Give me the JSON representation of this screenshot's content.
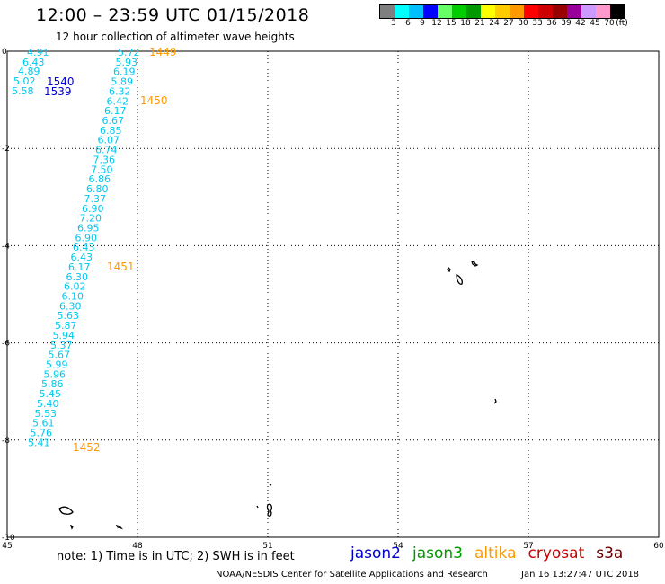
{
  "header": {
    "title": "12:00 – 23:59 UTC 01/15/2018",
    "subtitle": "12 hour collection of altimeter wave heights"
  },
  "scale": {
    "colors": [
      "#7f7f7f",
      "#00ffff",
      "#00bfff",
      "#0000ff",
      "#66ff66",
      "#00cc00",
      "#009900",
      "#ffff00",
      "#ffcc00",
      "#ff9900",
      "#ff0000",
      "#cc0000",
      "#990000",
      "#990099",
      "#cc99ff",
      "#ff99cc",
      "#000000"
    ],
    "labels": [
      "3",
      "6",
      "9",
      "12",
      "15",
      "18",
      "21",
      "24",
      "27",
      "30",
      "33",
      "36",
      "39",
      "42",
      "45",
      "70",
      "(ft)"
    ]
  },
  "map": {
    "lon_ticks": [
      "45",
      "48",
      "51",
      "54",
      "57",
      "60"
    ],
    "lat_ticks": [
      "0",
      "-2",
      "-4",
      "-6",
      "-8",
      "-10"
    ],
    "lon_range": [
      45,
      60
    ],
    "lat_range": [
      -10,
      0
    ],
    "grid": true,
    "colors": {
      "cyan": "#00c8f0",
      "jason2": "#0000cc",
      "altika": "#ff9900"
    }
  },
  "track_left": {
    "values": [
      "4.91",
      "6.43",
      "4.89",
      "5.02",
      "5.58"
    ]
  },
  "track_jason2": {
    "times": [
      "1540",
      "1539"
    ]
  },
  "track_main": {
    "values": [
      "5.72",
      "5.93",
      "6.19",
      "5.89",
      "6.32",
      "6.42",
      "6.17",
      "6.67",
      "6.85",
      "6.07",
      "6.74",
      "7.36",
      "7.50",
      "6.86",
      "6.80",
      "7.37",
      "6.90",
      "7.20",
      "6.95",
      "6.90",
      "6.43",
      "6.43",
      "6.17",
      "6.30",
      "6.02",
      "6.10",
      "6.30",
      "5.63",
      "5.87",
      "5.94",
      "5.37",
      "5.67",
      "5.99",
      "5.96",
      "5.86",
      "5.45",
      "5.40",
      "5.53",
      "5.61",
      "5.76",
      "5.41"
    ]
  },
  "track_times": {
    "labels": [
      "1449",
      "1450",
      "1451",
      "1452"
    ]
  },
  "notes": {
    "note": "note:  1) Time is in UTC;  2) SWH is in feet",
    "satellites": [
      "jason2",
      "jason3",
      "altika",
      "cryosat",
      "s3a"
    ],
    "satellite_colors": [
      "#0000cc",
      "#009900",
      "#ff9900",
      "#cc0000",
      "#660000"
    ],
    "credit": "NOAA/NESDIS Center for Satellite Applications and Research",
    "timestamp": "Jan 16 13:27:47 UTC 2018"
  }
}
